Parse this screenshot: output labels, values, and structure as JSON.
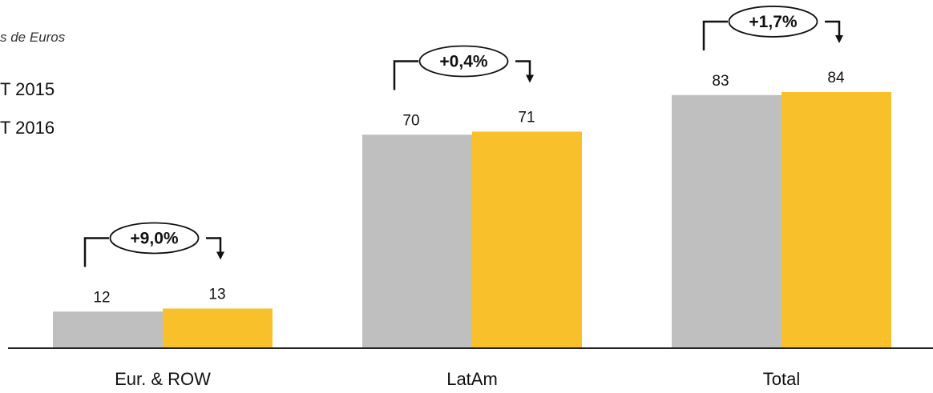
{
  "chart_data": {
    "type": "bar",
    "unit_label": "s de Euros",
    "categories": [
      "Eur. & ROW",
      "LatAm",
      "Total"
    ],
    "series": [
      {
        "name": "T 2015",
        "values": [
          12,
          70,
          83
        ],
        "color": "#bfbfbf"
      },
      {
        "name": "T 2016",
        "values": [
          13,
          71,
          84
        ],
        "color": "#f8c12c"
      }
    ],
    "data_labels": [
      [
        "12",
        "70",
        "83"
      ],
      [
        "13",
        "71",
        "84"
      ]
    ],
    "growth_labels": [
      "+9,0%",
      "+0,4%",
      "+1,7%"
    ],
    "ylim": [
      0,
      84
    ],
    "grid": false,
    "legend_position": "top-left"
  }
}
